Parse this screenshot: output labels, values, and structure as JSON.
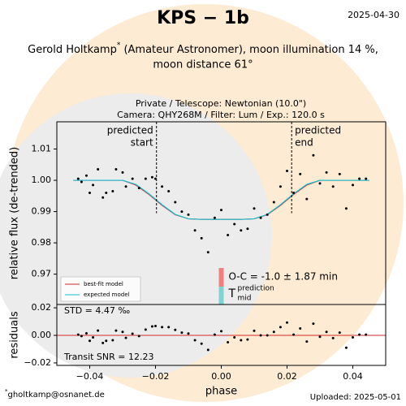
{
  "header": {
    "title": "KPS − 1b",
    "date": "2025-04-30",
    "subtitle": [
      "Gerold Holtkamp",
      "*",
      " (Amateur Astronomer), moon illumination 14 %,",
      "moon distance 61°"
    ],
    "observation": [
      "Private / Telescope: Newtonian (10.0\")",
      "Camera: QHY268M / Filter: Lum / Exp.: 120.0 s"
    ]
  },
  "footer": {
    "star": "*",
    "email": "gholtkamp@osnanet.de",
    "uploaded": "Uploaded: 2025-05-01"
  },
  "chart_data": [
    {
      "type": "scatter",
      "ylabel": "relative flux (de-trended)",
      "xlim": [
        -0.05,
        0.05
      ],
      "ylim": [
        0.9603,
        1.0187
      ],
      "yticks": [
        0.97,
        0.98,
        0.99,
        {
          "value": 1.0,
          "label": "1.00"
        },
        1.01
      ],
      "x": [
        -0.0435,
        -0.0425,
        -0.041,
        -0.04,
        -0.039,
        -0.0375,
        -0.036,
        -0.035,
        -0.033,
        -0.032,
        -0.03,
        -0.029,
        -0.027,
        -0.025,
        -0.023,
        -0.021,
        -0.02,
        -0.018,
        -0.016,
        -0.014,
        -0.012,
        -0.01,
        -0.008,
        -0.006,
        -0.004,
        -0.002,
        0,
        0.002,
        0.004,
        0.006,
        0.008,
        0.01,
        0.012,
        0.014,
        0.016,
        0.018,
        0.02,
        0.022,
        0.024,
        0.026,
        0.028,
        0.03,
        0.032,
        0.034,
        0.036,
        0.038,
        0.04,
        0.042,
        0.044
      ],
      "values": [
        1.0005,
        0.9995,
        1.0015,
        0.996,
        0.9985,
        1.0035,
        0.9945,
        0.996,
        0.9965,
        1.0035,
        1.0025,
        0.998,
        1.0005,
        0.9975,
        1.0005,
        1.001,
        1.0005,
        0.998,
        0.9965,
        0.993,
        0.99,
        0.989,
        0.984,
        0.9815,
        0.977,
        0.988,
        0.9905,
        0.9825,
        0.986,
        0.984,
        0.9845,
        0.991,
        0.988,
        0.989,
        0.993,
        0.998,
        1.003,
        0.996,
        1.002,
        0.994,
        1.008,
        0.999,
        1.0025,
        0.998,
        1.002,
        0.991,
        0.9985,
        1.0005,
        1.0005
      ],
      "color": "#000000",
      "models": [
        {
          "name": "best-fit model",
          "color": "#d62728",
          "x": [
            -0.045,
            -0.03,
            -0.026,
            -0.022,
            -0.018,
            -0.014,
            -0.01,
            -0.006,
            0,
            0.006,
            0.01,
            0.014,
            0.018,
            0.022,
            0.026,
            0.03,
            0.045
          ],
          "values": [
            1.0,
            1.0,
            0.9985,
            0.9955,
            0.992,
            0.989,
            0.9877,
            0.9875,
            0.9875,
            0.9875,
            0.9877,
            0.989,
            0.992,
            0.9955,
            0.9985,
            1.0,
            1.0
          ]
        },
        {
          "name": "expected model",
          "color": "#17becf",
          "x": [
            -0.045,
            -0.03,
            -0.026,
            -0.022,
            -0.018,
            -0.014,
            -0.01,
            -0.006,
            0,
            0.006,
            0.01,
            0.014,
            0.018,
            0.022,
            0.026,
            0.03,
            0.045
          ],
          "values": [
            1.0,
            1.0,
            0.9987,
            0.9957,
            0.9922,
            0.9891,
            0.9877,
            0.9875,
            0.9875,
            0.9875,
            0.9877,
            0.9891,
            0.9922,
            0.9957,
            0.9987,
            1.0,
            1.0
          ]
        }
      ],
      "predicted_start": -0.0197,
      "predicted_end": 0.0214,
      "start_label": [
        "predicted",
        "start"
      ],
      "end_label": [
        "predicted",
        "end"
      ],
      "oc_label": "O-C = -1.0 ± 1.87 min",
      "tmid_label": [
        "T",
        "prediction",
        "mid"
      ]
    },
    {
      "type": "scatter",
      "ylabel": "residuals",
      "xlabel": "phase",
      "xlim": [
        -0.05,
        0.05
      ],
      "ylim": [
        -0.0218,
        0.0224
      ],
      "xticks": [
        {
          "value": -0.04,
          "label": "−0.04"
        },
        {
          "value": -0.02,
          "label": "−0.02"
        },
        {
          "value": 0,
          "label": "0.00"
        },
        {
          "value": 0.02,
          "label": "0.02"
        },
        {
          "value": 0.04,
          "label": "0.04"
        }
      ],
      "yticks": [
        {
          "value": -0.02,
          "label": "−0.02"
        },
        {
          "value": 0,
          "label": "0.00"
        },
        {
          "value": 0.02,
          "label": "0.02"
        }
      ],
      "x": [
        -0.0435,
        -0.0425,
        -0.041,
        -0.04,
        -0.039,
        -0.0375,
        -0.036,
        -0.035,
        -0.033,
        -0.032,
        -0.03,
        -0.029,
        -0.027,
        -0.025,
        -0.023,
        -0.021,
        -0.02,
        -0.018,
        -0.016,
        -0.014,
        -0.012,
        -0.01,
        -0.008,
        -0.006,
        -0.004,
        -0.002,
        0,
        0.002,
        0.004,
        0.006,
        0.008,
        0.01,
        0.012,
        0.014,
        0.016,
        0.018,
        0.02,
        0.022,
        0.024,
        0.026,
        0.028,
        0.03,
        0.032,
        0.034,
        0.036,
        0.038,
        0.04,
        0.042,
        0.044
      ],
      "values": [
        0.0005,
        -0.0005,
        0.0015,
        -0.004,
        -0.0015,
        0.0035,
        -0.0055,
        -0.004,
        -0.0035,
        0.0035,
        0.0025,
        -0.0018,
        0.0012,
        -0.0005,
        0.0042,
        0.0065,
        0.0068,
        0.006,
        0.006,
        0.004,
        0.002,
        0.0013,
        -0.0035,
        -0.006,
        -0.0105,
        0.0005,
        0.003,
        -0.005,
        -0.0015,
        -0.0035,
        -0.003,
        0.0033,
        0,
        0,
        0.0025,
        0.006,
        0.0093,
        0.0005,
        0.005,
        -0.0045,
        0.0085,
        -0.001,
        0.0025,
        -0.002,
        0.002,
        -0.009,
        -0.0015,
        0.0005,
        0.0005
      ],
      "color": "#000000",
      "zero_color": "#d62728",
      "std_label": "STD = 4.47 ‰",
      "snr_label": "Transit SNR = 12.23"
    }
  ]
}
